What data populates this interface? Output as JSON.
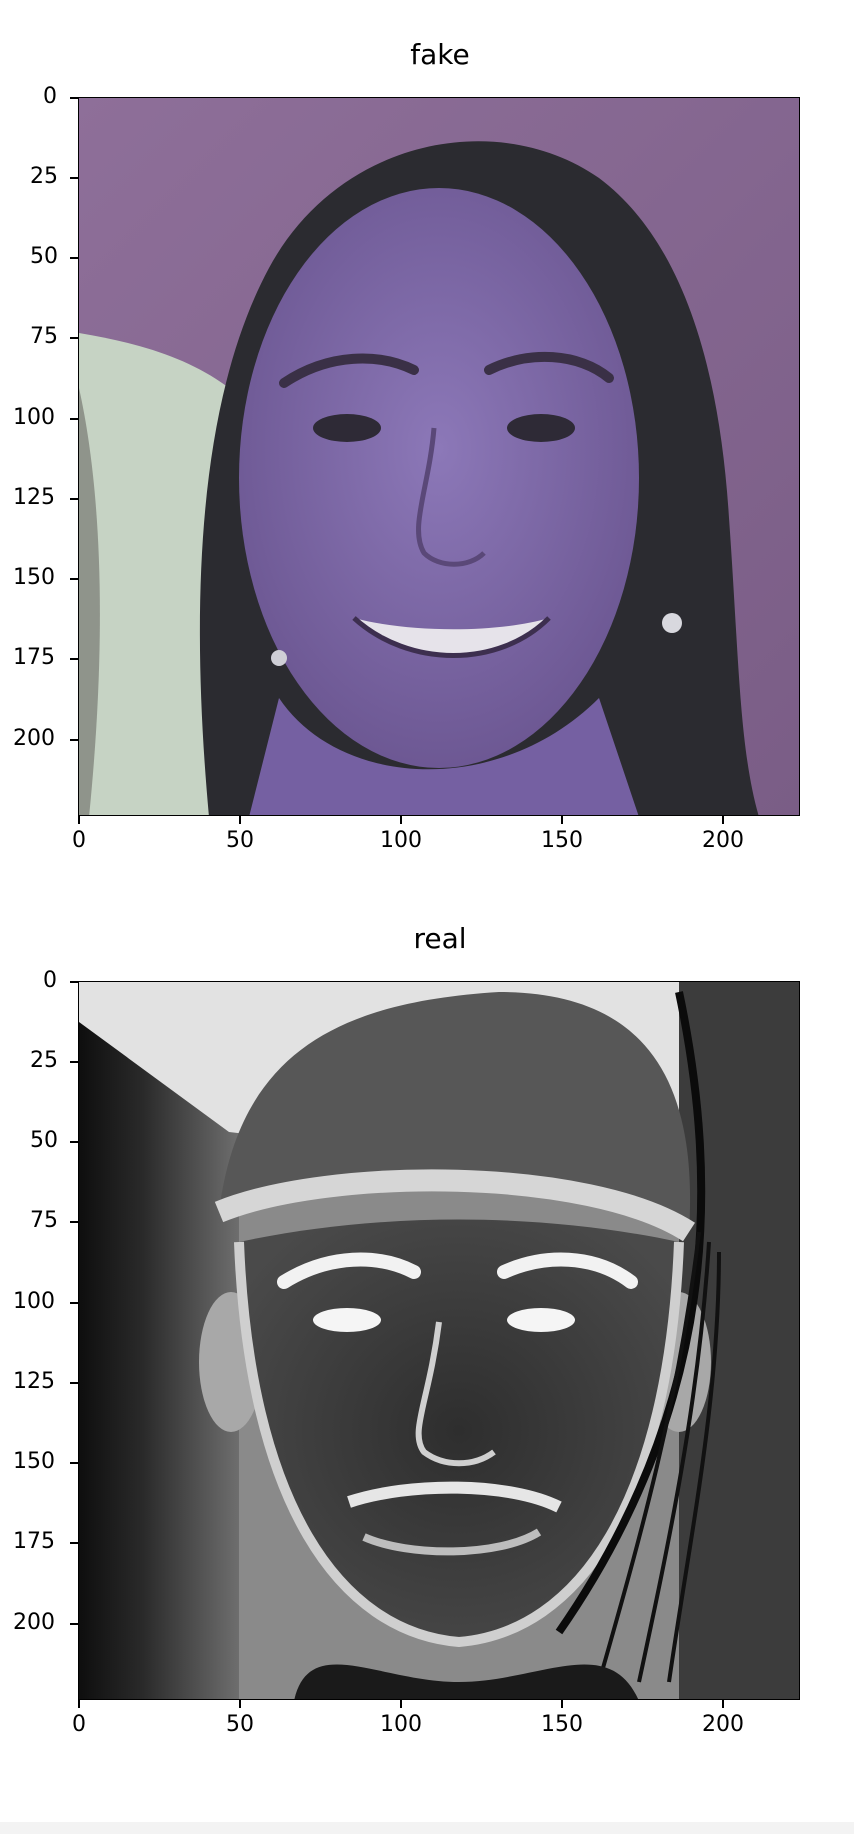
{
  "charts": [
    {
      "title": "fake",
      "type": "image",
      "x_ticks": [
        "0",
        "50",
        "100",
        "150",
        "200"
      ],
      "y_ticks": [
        "0",
        "25",
        "50",
        "75",
        "100",
        "125",
        "150",
        "175",
        "200"
      ],
      "colors": {
        "bg": "#8a6a96",
        "face": "#7d66a8",
        "hair": "#2a2a2e",
        "left_bg": "#c8d4c6"
      }
    },
    {
      "title": "real",
      "type": "image",
      "x_ticks": [
        "0",
        "50",
        "100",
        "150",
        "200"
      ],
      "y_ticks": [
        "0",
        "25",
        "50",
        "75",
        "100",
        "125",
        "150",
        "175",
        "200"
      ],
      "colors": {
        "bg": "#d8d8d8",
        "face": "#3c3c3c",
        "cap": "#4a4a4a",
        "left_band": "#111111"
      }
    }
  ],
  "chart_data": [
    {
      "type": "heatmap",
      "title": "fake",
      "xlabel": "",
      "ylabel": "",
      "xlim": [
        0,
        224
      ],
      "ylim": [
        224,
        0
      ],
      "x_ticks": [
        0,
        50,
        100,
        150,
        200
      ],
      "y_ticks": [
        0,
        25,
        50,
        75,
        100,
        125,
        150,
        175,
        200
      ],
      "grid": false
    },
    {
      "type": "heatmap",
      "title": "real",
      "xlabel": "",
      "ylabel": "",
      "xlim": [
        0,
        224
      ],
      "ylim": [
        224,
        0
      ],
      "x_ticks": [
        0,
        50,
        100,
        150,
        200
      ],
      "y_ticks": [
        0,
        25,
        50,
        75,
        100,
        125,
        150,
        175,
        200
      ],
      "grid": false
    }
  ]
}
